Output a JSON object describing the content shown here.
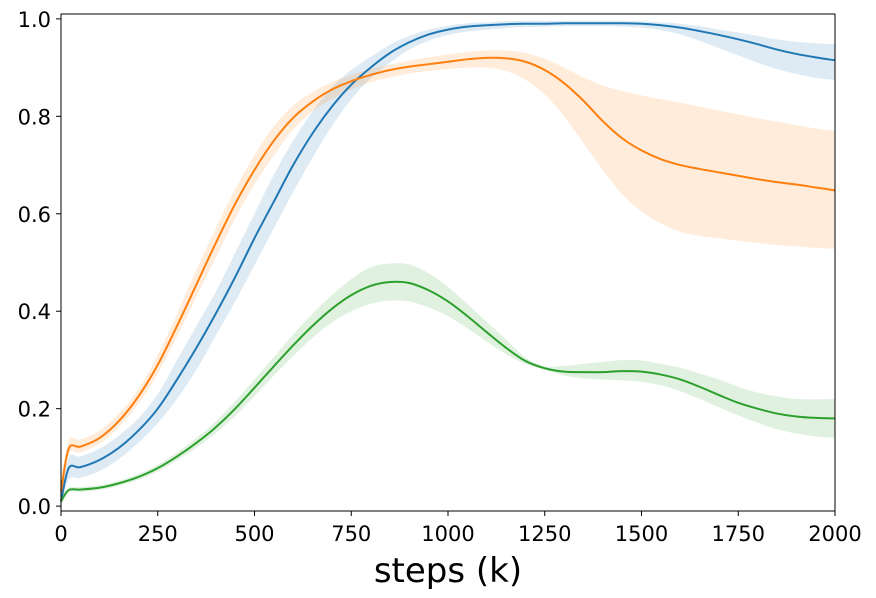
{
  "chart_data": {
    "type": "line",
    "title": "",
    "xlabel": "steps (k)",
    "ylabel": "",
    "xlim": [
      0,
      2000
    ],
    "ylim": [
      -0.01,
      1.01
    ],
    "grid": false,
    "x_ticks": [
      0,
      250,
      500,
      750,
      1000,
      1250,
      1500,
      1750,
      2000
    ],
    "x_tick_labels": [
      "0",
      "250",
      "500",
      "750",
      "1000",
      "1250",
      "1500",
      "1750",
      "2000"
    ],
    "y_ticks": [
      0.0,
      0.2,
      0.4,
      0.6,
      0.8,
      1.0
    ],
    "y_tick_labels": [
      "0.0",
      "0.2",
      "0.4",
      "0.6",
      "0.8",
      "1.0"
    ],
    "x": [
      0,
      20,
      50,
      100,
      150,
      200,
      250,
      300,
      350,
      400,
      450,
      500,
      550,
      600,
      650,
      700,
      750,
      800,
      850,
      900,
      950,
      1000,
      1050,
      1100,
      1150,
      1200,
      1250,
      1300,
      1350,
      1400,
      1450,
      1500,
      1550,
      1600,
      1650,
      1700,
      1750,
      1800,
      1850,
      1900,
      1950,
      2000
    ],
    "series": [
      {
        "name": "blue",
        "color": "#1f77b4",
        "values": [
          0.01,
          0.078,
          0.08,
          0.095,
          0.12,
          0.155,
          0.2,
          0.26,
          0.325,
          0.395,
          0.47,
          0.55,
          0.625,
          0.7,
          0.765,
          0.82,
          0.865,
          0.9,
          0.93,
          0.952,
          0.968,
          0.978,
          0.984,
          0.987,
          0.989,
          0.99,
          0.99,
          0.991,
          0.991,
          0.991,
          0.991,
          0.99,
          0.987,
          0.982,
          0.975,
          0.967,
          0.958,
          0.948,
          0.937,
          0.928,
          0.921,
          0.915
        ],
        "lower": [
          0.0,
          0.055,
          0.058,
          0.072,
          0.097,
          0.13,
          0.17,
          0.22,
          0.28,
          0.35,
          0.42,
          0.495,
          0.57,
          0.645,
          0.715,
          0.78,
          0.835,
          0.878,
          0.91,
          0.937,
          0.955,
          0.967,
          0.974,
          0.978,
          0.981,
          0.983,
          0.984,
          0.985,
          0.985,
          0.985,
          0.984,
          0.982,
          0.977,
          0.968,
          0.955,
          0.94,
          0.925,
          0.91,
          0.897,
          0.887,
          0.879,
          0.875
        ],
        "upper": [
          0.02,
          0.1,
          0.102,
          0.118,
          0.145,
          0.18,
          0.23,
          0.3,
          0.37,
          0.44,
          0.52,
          0.6,
          0.68,
          0.75,
          0.81,
          0.86,
          0.895,
          0.922,
          0.947,
          0.965,
          0.978,
          0.986,
          0.991,
          0.993,
          0.995,
          0.996,
          0.996,
          0.996,
          0.996,
          0.996,
          0.996,
          0.995,
          0.993,
          0.99,
          0.985,
          0.978,
          0.972,
          0.965,
          0.958,
          0.953,
          0.95,
          0.948
        ]
      },
      {
        "name": "orange",
        "color": "#ff7f0e",
        "values": [
          0.03,
          0.118,
          0.122,
          0.14,
          0.175,
          0.225,
          0.29,
          0.37,
          0.455,
          0.54,
          0.62,
          0.69,
          0.75,
          0.797,
          0.83,
          0.855,
          0.872,
          0.885,
          0.895,
          0.902,
          0.907,
          0.912,
          0.917,
          0.92,
          0.919,
          0.912,
          0.895,
          0.868,
          0.832,
          0.79,
          0.755,
          0.73,
          0.712,
          0.7,
          0.692,
          0.685,
          0.678,
          0.671,
          0.665,
          0.66,
          0.654,
          0.648
        ],
        "lower": [
          0.0,
          0.105,
          0.11,
          0.128,
          0.163,
          0.21,
          0.272,
          0.348,
          0.43,
          0.51,
          0.59,
          0.66,
          0.72,
          0.773,
          0.81,
          0.835,
          0.855,
          0.87,
          0.88,
          0.888,
          0.893,
          0.897,
          0.9,
          0.9,
          0.893,
          0.875,
          0.845,
          0.8,
          0.745,
          0.69,
          0.64,
          0.605,
          0.58,
          0.563,
          0.555,
          0.55,
          0.545,
          0.54,
          0.536,
          0.533,
          0.53,
          0.528
        ],
        "upper": [
          0.05,
          0.135,
          0.137,
          0.155,
          0.19,
          0.24,
          0.31,
          0.395,
          0.485,
          0.57,
          0.65,
          0.72,
          0.78,
          0.822,
          0.85,
          0.87,
          0.885,
          0.897,
          0.906,
          0.914,
          0.921,
          0.927,
          0.932,
          0.935,
          0.935,
          0.93,
          0.918,
          0.9,
          0.88,
          0.863,
          0.852,
          0.843,
          0.835,
          0.828,
          0.82,
          0.812,
          0.804,
          0.796,
          0.789,
          0.782,
          0.775,
          0.77
        ],
        "band_color": "#ff7f0e"
      },
      {
        "name": "green",
        "color": "#2ca02c",
        "values": [
          0.01,
          0.033,
          0.034,
          0.038,
          0.047,
          0.06,
          0.078,
          0.102,
          0.13,
          0.162,
          0.2,
          0.243,
          0.287,
          0.33,
          0.37,
          0.405,
          0.433,
          0.452,
          0.46,
          0.458,
          0.443,
          0.42,
          0.39,
          0.357,
          0.325,
          0.298,
          0.283,
          0.276,
          0.275,
          0.275,
          0.277,
          0.276,
          0.27,
          0.26,
          0.245,
          0.228,
          0.212,
          0.2,
          0.19,
          0.184,
          0.181,
          0.18
        ],
        "lower": [
          0.0,
          0.028,
          0.029,
          0.033,
          0.042,
          0.054,
          0.071,
          0.094,
          0.12,
          0.15,
          0.185,
          0.226,
          0.268,
          0.308,
          0.345,
          0.377,
          0.4,
          0.415,
          0.422,
          0.42,
          0.408,
          0.39,
          0.365,
          0.338,
          0.312,
          0.292,
          0.28,
          0.268,
          0.262,
          0.26,
          0.258,
          0.255,
          0.248,
          0.236,
          0.22,
          0.203,
          0.186,
          0.171,
          0.158,
          0.149,
          0.143,
          0.14
        ],
        "upper": [
          0.02,
          0.038,
          0.039,
          0.043,
          0.052,
          0.066,
          0.085,
          0.11,
          0.14,
          0.174,
          0.215,
          0.26,
          0.306,
          0.352,
          0.395,
          0.433,
          0.466,
          0.49,
          0.498,
          0.496,
          0.478,
          0.45,
          0.415,
          0.378,
          0.342,
          0.305,
          0.287,
          0.288,
          0.292,
          0.296,
          0.3,
          0.299,
          0.292,
          0.284,
          0.272,
          0.26,
          0.245,
          0.233,
          0.225,
          0.22,
          0.219,
          0.22
        ]
      }
    ]
  }
}
